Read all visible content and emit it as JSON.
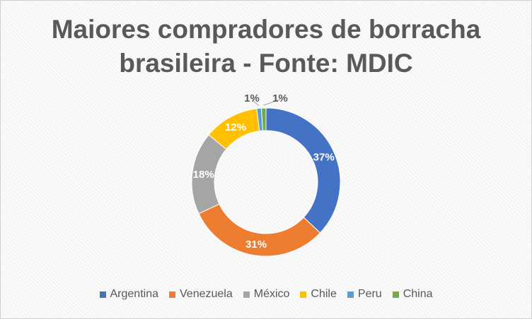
{
  "chart_data": {
    "type": "pie",
    "subtype": "doughnut",
    "title_line1": "Maiores compradores de borracha",
    "title_line2": "brasileira - Fonte: MDIC",
    "categories": [
      "Argentina",
      "Venezuela",
      "México",
      "Chile",
      "Peru",
      "China"
    ],
    "values": [
      37,
      31,
      18,
      12,
      1,
      1
    ],
    "labels": [
      "37%",
      "31%",
      "18%",
      "12%",
      "1%",
      "1%"
    ],
    "colors": [
      "#4472C4",
      "#ED7D31",
      "#A5A5A5",
      "#FFC000",
      "#5B9BD5",
      "#70AD47"
    ],
    "legend_position": "bottom"
  }
}
